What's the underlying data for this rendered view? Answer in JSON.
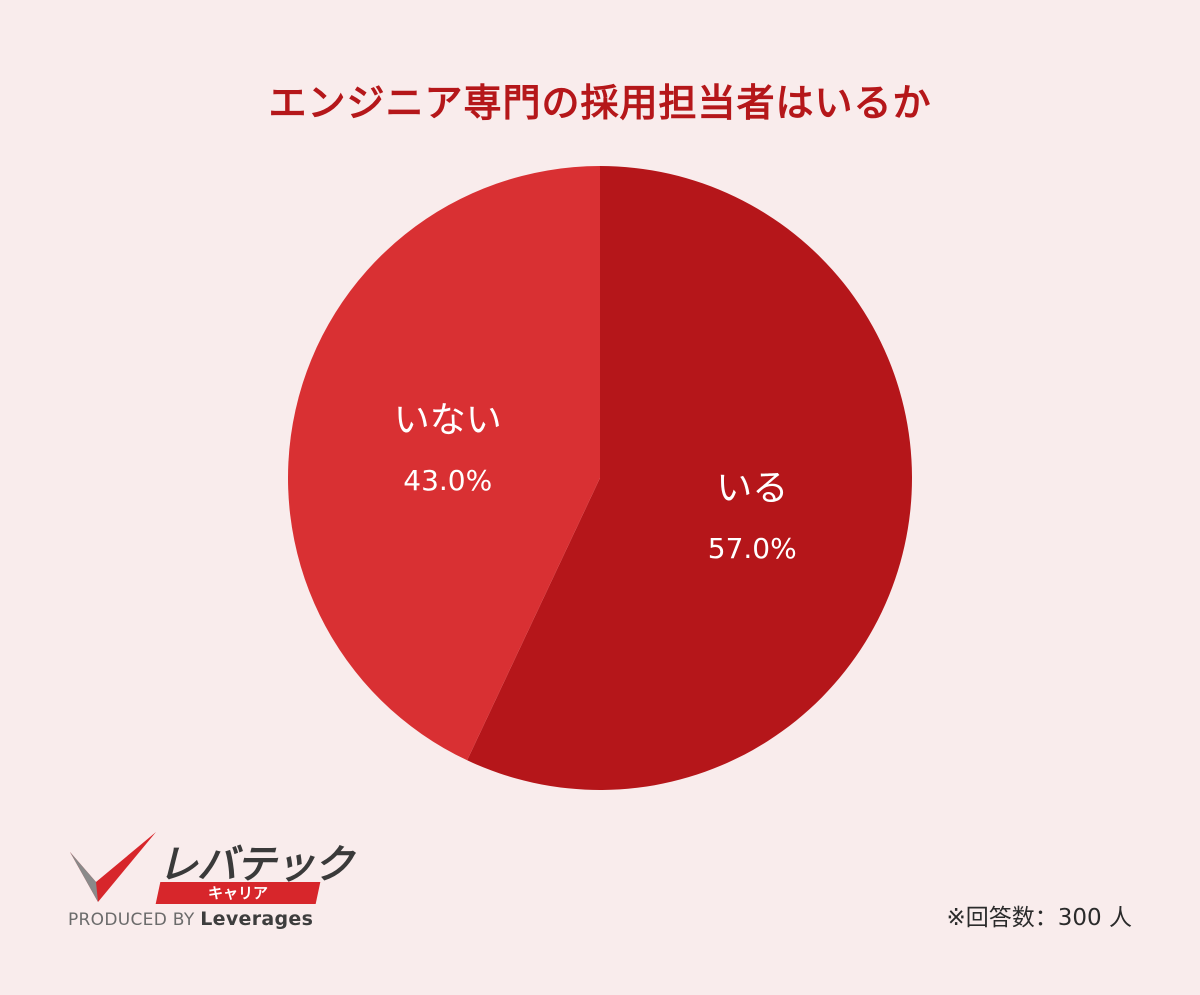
{
  "chart_data": {
    "type": "pie",
    "title": "エンジニア専門の採用担当者はいるか",
    "slices": [
      {
        "label": "いる",
        "value": 57.0,
        "value_label": "57.0%",
        "color": "#b5161a"
      },
      {
        "label": "いない",
        "value": 43.0,
        "value_label": "43.0%",
        "color": "#d93033"
      }
    ],
    "start_angle": "12 o'clock",
    "direction": "clockwise",
    "background_color": "#f9ecec",
    "title_color": "#b5171a"
  },
  "logo": {
    "name": "レバテック",
    "sub": "キャリア",
    "produced_by": "PRODUCED BY",
    "company": "Leverages"
  },
  "footnote": "※回答数：300 人"
}
